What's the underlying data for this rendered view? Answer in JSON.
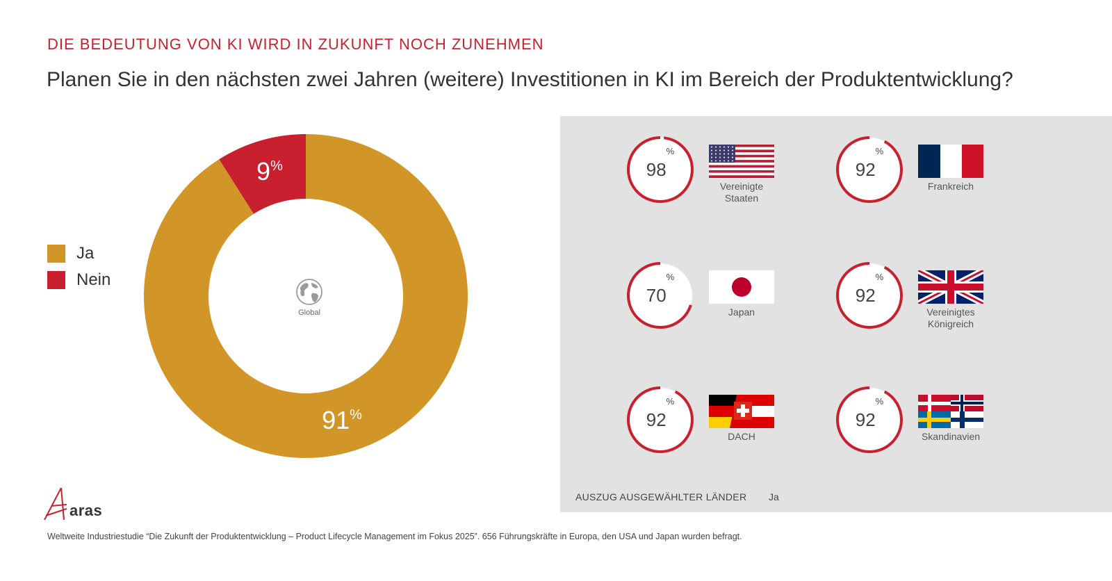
{
  "header": {
    "kicker": "DIE BEDEUTUNG VON KI WIRD IN ZUKUNFT NOCH ZUNEHMEN",
    "title": "Planen Sie in den nächsten zwei Jahren (weitere) Investitionen in KI im Bereich der Produktentwicklung?"
  },
  "legend": [
    {
      "label": "Ja",
      "color": "#d29527"
    },
    {
      "label": "Nein",
      "color": "#c8202f"
    }
  ],
  "chart_data": [
    {
      "type": "pie",
      "center_label": "Global",
      "center_icon": "globe-icon",
      "categories": [
        "Ja",
        "Nein"
      ],
      "values": [
        91,
        9
      ],
      "value_labels": [
        "91",
        "9"
      ],
      "unit": "%",
      "colors": [
        "#d29527",
        "#c8202f"
      ]
    },
    {
      "type": "pie",
      "title": "AUSZUG AUSGEWÄHLTER LÄNDER",
      "series_label": "Ja",
      "unit": "%",
      "ring_color": "#c8202f",
      "countries": [
        {
          "name": "Vereinigte\nStaaten",
          "value": 98,
          "flag": "us-flag"
        },
        {
          "name": "Frankreich",
          "value": 92,
          "flag": "france-flag"
        },
        {
          "name": "Japan",
          "value": 70,
          "flag": "japan-flag"
        },
        {
          "name": "Vereinigtes\nKönigreich",
          "value": 92,
          "flag": "uk-flag"
        },
        {
          "name": "DACH",
          "value": 92,
          "flag": "dach-flag"
        },
        {
          "name": "Skandinavien",
          "value": 92,
          "flag": "scandinavia-flag"
        }
      ]
    }
  ],
  "panel": {
    "footer_label": "AUSZUG AUSGEWÄHLTER LÄNDER",
    "footer_series": "Ja"
  },
  "brand": {
    "logo_text": "aras"
  },
  "footnote": "Weltweite Industriestudie “Die Zukunft der Produktentwicklung – Product Lifecycle Management im Fokus 2025”. 656 Führungskräfte in Europa, den USA und Japan wurden befragt."
}
